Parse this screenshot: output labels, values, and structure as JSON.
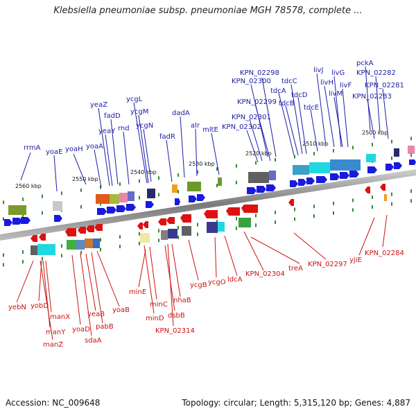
{
  "header": {
    "title": "Klebsiella pneumoniae subsp. pneumoniae MGH 78578, complete ..."
  },
  "footer": {
    "accession": "Accession: NC_009648",
    "summary": "Topology: circular; Length: 5,315,120 bp; Genes: 4,887"
  },
  "colors": {
    "forward": "#1a1aa6",
    "reverse": "#cc1111",
    "backbone": "#808080",
    "tick": "#2e8b2e"
  },
  "kbp_marks": [
    "2500 kbp",
    "2510 kbp",
    "2520 kbp",
    "2530 kbp",
    "2540 kbp",
    "2550 kbp",
    "2560 kbp"
  ],
  "top_labels": [
    "pckA",
    "KPN_02282",
    "KPN_02281",
    "KPN_02283",
    "livJ",
    "livG",
    "livH",
    "livF",
    "livM",
    "KPN_02298",
    "KPN_02300",
    "tdcC",
    "tdcA",
    "tdcB",
    "tdcD",
    "tdcE",
    "KPN_02299",
    "KPN_02301",
    "KPN_02302",
    "mltE",
    "alr",
    "dadA",
    "fadR",
    "ycgL",
    "ycgM",
    "ycgN",
    "yeaZ",
    "fadD",
    "yeaY",
    "rnd",
    "yoaA",
    "rrmA",
    "yoaE",
    "yoaH"
  ],
  "bottom_labels": [
    "yebN",
    "yobD",
    "manX",
    "manY",
    "manZ",
    "yoaD",
    "yeaB",
    "pabB",
    "sdaA",
    "yoaB",
    "minE",
    "minC",
    "minD",
    "dsbB",
    "nhaB",
    "KPN_02314",
    "ycgB",
    "ycgO",
    "ldcA",
    "KPN_02304",
    "treA",
    "KPN_02297",
    "yjiE",
    "KPN_02284"
  ]
}
